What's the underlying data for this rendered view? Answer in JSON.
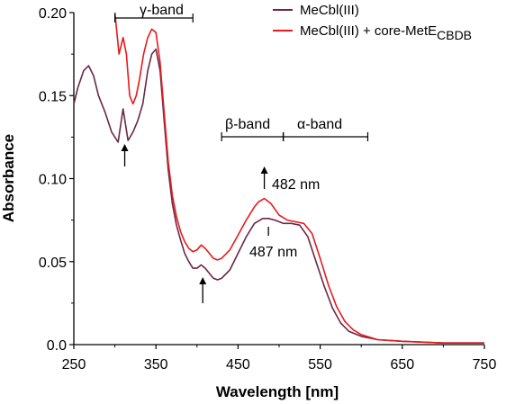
{
  "chart_data": {
    "type": "line",
    "xlabel": "Wavelength [nm]",
    "ylabel": "Absorbance",
    "xlim": [
      250,
      750
    ],
    "ylim": [
      0.0,
      0.2
    ],
    "xticks": [
      "250",
      "350",
      "450",
      "550",
      "650",
      "750"
    ],
    "yticks": [
      "0.0",
      "0.05",
      "0.10",
      "0.15",
      "0.20"
    ],
    "grid": false,
    "legend_position": "top-right",
    "series": [
      {
        "name": "MeCbl(III)",
        "legend_main": "MeCbl(III)",
        "legend_sub": "",
        "color": "#6b2747",
        "x": [
          250,
          255,
          262,
          268,
          274,
          280,
          288,
          296,
          304,
          310,
          316,
          322,
          328,
          334,
          340,
          345,
          350,
          355,
          360,
          365,
          370,
          375,
          380,
          385,
          390,
          395,
          400,
          405,
          410,
          415,
          420,
          425,
          430,
          440,
          450,
          460,
          470,
          480,
          487,
          495,
          505,
          515,
          525,
          535,
          545,
          555,
          565,
          575,
          585,
          600,
          620,
          650,
          700,
          750
        ],
        "y": [
          0.145,
          0.155,
          0.165,
          0.168,
          0.162,
          0.15,
          0.14,
          0.128,
          0.122,
          0.142,
          0.123,
          0.128,
          0.135,
          0.145,
          0.165,
          0.175,
          0.178,
          0.165,
          0.135,
          0.105,
          0.085,
          0.072,
          0.063,
          0.055,
          0.05,
          0.046,
          0.046,
          0.048,
          0.046,
          0.043,
          0.04,
          0.039,
          0.04,
          0.045,
          0.055,
          0.065,
          0.073,
          0.076,
          0.076,
          0.075,
          0.073,
          0.073,
          0.072,
          0.065,
          0.05,
          0.035,
          0.022,
          0.013,
          0.008,
          0.005,
          0.003,
          0.002,
          0.001,
          0.001
        ]
      },
      {
        "name": "MeCbl(III) + core-MetE CBDB",
        "legend_main": "MeCbl(III) + core-MetE",
        "legend_sub": "CBDB",
        "color": "#e8191b",
        "x": [
          300,
          305,
          310,
          314,
          318,
          322,
          326,
          330,
          335,
          340,
          345,
          350,
          355,
          360,
          365,
          370,
          375,
          380,
          385,
          390,
          395,
          400,
          405,
          410,
          415,
          420,
          425,
          430,
          440,
          450,
          460,
          470,
          475,
          482,
          490,
          500,
          510,
          520,
          530,
          540,
          550,
          560,
          570,
          580,
          590,
          600,
          620,
          650,
          700,
          750
        ],
        "y": [
          0.2,
          0.175,
          0.185,
          0.175,
          0.15,
          0.145,
          0.15,
          0.16,
          0.175,
          0.185,
          0.19,
          0.188,
          0.17,
          0.14,
          0.11,
          0.09,
          0.077,
          0.068,
          0.062,
          0.058,
          0.056,
          0.057,
          0.06,
          0.058,
          0.055,
          0.052,
          0.051,
          0.052,
          0.057,
          0.066,
          0.075,
          0.083,
          0.086,
          0.088,
          0.085,
          0.078,
          0.075,
          0.074,
          0.073,
          0.067,
          0.052,
          0.036,
          0.023,
          0.014,
          0.009,
          0.006,
          0.003,
          0.002,
          0.001,
          0.001
        ]
      }
    ],
    "annotations": {
      "gamma_band": "γ-band",
      "beta_band": "β-band",
      "alpha_band": "α-band",
      "peak_482": "482 nm",
      "peak_487": "487 nm"
    }
  }
}
